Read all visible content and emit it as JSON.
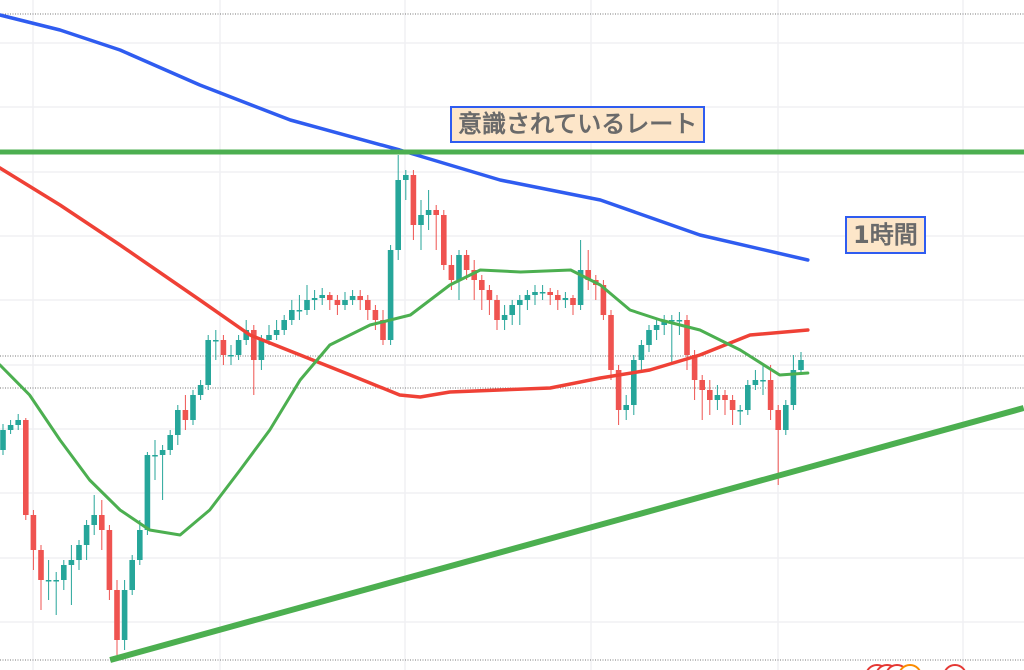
{
  "chart_data": {
    "type": "candlestick",
    "title": "",
    "xlabel": "",
    "ylabel": "",
    "grid": true,
    "ylim": [
      0,
      670
    ],
    "colors": {
      "up": "#26a69a",
      "down": "#ef5350",
      "ma_blue": "#2f5cf0",
      "ma_red": "#ef4136",
      "ma_green": "#4caf50",
      "level_line": "#4caf50",
      "trend_line": "#4caf50"
    },
    "candles_ohlc": [
      [
        220,
        246,
        215,
        240
      ],
      [
        240,
        250,
        236,
        245
      ],
      [
        245,
        256,
        240,
        250
      ],
      [
        250,
        252,
        150,
        155
      ],
      [
        155,
        160,
        100,
        120
      ],
      [
        120,
        125,
        60,
        90
      ],
      [
        90,
        110,
        70,
        90
      ],
      [
        90,
        98,
        55,
        90
      ],
      [
        90,
        110,
        80,
        105
      ],
      [
        105,
        125,
        65,
        110
      ],
      [
        110,
        130,
        100,
        125
      ],
      [
        125,
        150,
        110,
        145
      ],
      [
        145,
        175,
        135,
        155
      ],
      [
        155,
        170,
        120,
        140
      ],
      [
        140,
        145,
        70,
        80
      ],
      [
        80,
        90,
        15,
        30
      ],
      [
        30,
        90,
        20,
        80
      ],
      [
        80,
        115,
        75,
        110
      ],
      [
        110,
        150,
        105,
        140
      ],
      [
        140,
        218,
        135,
        215
      ],
      [
        215,
        230,
        190,
        215
      ],
      [
        215,
        225,
        170,
        220
      ],
      [
        220,
        240,
        215,
        235
      ],
      [
        235,
        265,
        225,
        260
      ],
      [
        260,
        275,
        240,
        250
      ],
      [
        250,
        280,
        245,
        275
      ],
      [
        275,
        290,
        270,
        285
      ],
      [
        285,
        335,
        280,
        330
      ],
      [
        330,
        340,
        310,
        330
      ],
      [
        330,
        335,
        305,
        315
      ],
      [
        315,
        325,
        305,
        315
      ],
      [
        315,
        335,
        310,
        330
      ],
      [
        330,
        350,
        325,
        340
      ],
      [
        340,
        345,
        275,
        310
      ],
      [
        310,
        335,
        300,
        330
      ],
      [
        330,
        345,
        325,
        335
      ],
      [
        335,
        350,
        330,
        340
      ],
      [
        340,
        355,
        335,
        350
      ],
      [
        350,
        370,
        345,
        360
      ],
      [
        360,
        375,
        350,
        360
      ],
      [
        360,
        385,
        355,
        370
      ],
      [
        370,
        380,
        360,
        372
      ],
      [
        372,
        382,
        365,
        375
      ],
      [
        375,
        378,
        360,
        370
      ],
      [
        370,
        375,
        355,
        365
      ],
      [
        365,
        378,
        360,
        370
      ],
      [
        370,
        380,
        365,
        374
      ],
      [
        374,
        380,
        360,
        370
      ],
      [
        370,
        375,
        350,
        360
      ],
      [
        360,
        365,
        340,
        350
      ],
      [
        350,
        360,
        325,
        330
      ],
      [
        330,
        425,
        325,
        420
      ],
      [
        420,
        515,
        410,
        490
      ],
      [
        490,
        500,
        470,
        495
      ],
      [
        495,
        500,
        430,
        445
      ],
      [
        445,
        470,
        420,
        455
      ],
      [
        455,
        480,
        440,
        460
      ],
      [
        460,
        465,
        420,
        455
      ],
      [
        455,
        460,
        400,
        405
      ],
      [
        405,
        415,
        380,
        390
      ],
      [
        390,
        420,
        370,
        415
      ],
      [
        415,
        420,
        390,
        400
      ],
      [
        400,
        410,
        370,
        390
      ],
      [
        390,
        395,
        360,
        380
      ],
      [
        380,
        385,
        355,
        370
      ],
      [
        370,
        375,
        340,
        350
      ],
      [
        350,
        365,
        340,
        355
      ],
      [
        355,
        370,
        345,
        365
      ],
      [
        365,
        375,
        345,
        370
      ],
      [
        370,
        380,
        360,
        375
      ],
      [
        375,
        385,
        365,
        378
      ],
      [
        378,
        385,
        370,
        378
      ],
      [
        378,
        382,
        365,
        375
      ],
      [
        375,
        380,
        360,
        370
      ],
      [
        370,
        378,
        362,
        372
      ],
      [
        372,
        375,
        355,
        365
      ],
      [
        365,
        430,
        360,
        400
      ],
      [
        400,
        420,
        380,
        390
      ],
      [
        390,
        395,
        370,
        385
      ],
      [
        385,
        390,
        350,
        355
      ],
      [
        355,
        360,
        290,
        300
      ],
      [
        300,
        305,
        245,
        260
      ],
      [
        260,
        275,
        250,
        265
      ],
      [
        265,
        315,
        255,
        310
      ],
      [
        310,
        330,
        300,
        325
      ],
      [
        325,
        345,
        318,
        340
      ],
      [
        340,
        350,
        330,
        345
      ],
      [
        345,
        355,
        335,
        350
      ],
      [
        350,
        355,
        305,
        350
      ],
      [
        350,
        358,
        335,
        350
      ],
      [
        350,
        355,
        300,
        315
      ],
      [
        315,
        320,
        270,
        290
      ],
      [
        290,
        295,
        250,
        280
      ],
      [
        280,
        290,
        255,
        270
      ],
      [
        270,
        285,
        260,
        275
      ],
      [
        275,
        280,
        255,
        270
      ],
      [
        270,
        275,
        245,
        260
      ],
      [
        260,
        265,
        245,
        260
      ],
      [
        260,
        290,
        255,
        285
      ],
      [
        285,
        300,
        280,
        290
      ],
      [
        290,
        305,
        275,
        290
      ],
      [
        290,
        305,
        250,
        260
      ],
      [
        260,
        265,
        185,
        240
      ],
      [
        240,
        270,
        235,
        265
      ],
      [
        265,
        315,
        260,
        300
      ],
      [
        300,
        318,
        295,
        310
      ]
    ],
    "moving_averages": [
      {
        "color_key": "ma_blue",
        "points": [
          [
            0.6,
            655
          ],
          [
            8.5,
            640
          ],
          [
            16.4,
            620
          ],
          [
            26.9,
            585
          ],
          [
            38.8,
            550
          ],
          [
            53.2,
            520
          ],
          [
            66.4,
            490
          ],
          [
            79.6,
            470
          ],
          [
            92.7,
            435
          ],
          [
            106.9,
            410
          ]
        ]
      },
      {
        "color_key": "ma_red",
        "points": [
          [
            0.6,
            502
          ],
          [
            8.5,
            465
          ],
          [
            16.4,
            425
          ],
          [
            26.9,
            370
          ],
          [
            33.5,
            335
          ],
          [
            40.1,
            315
          ],
          [
            46.7,
            295
          ],
          [
            53.2,
            275
          ],
          [
            55.9,
            273
          ],
          [
            59.8,
            278
          ],
          [
            73,
            282
          ],
          [
            79.6,
            292
          ],
          [
            86.1,
            300
          ],
          [
            92.7,
            315
          ],
          [
            99.3,
            335
          ],
          [
            106.9,
            340
          ]
        ]
      },
      {
        "color_key": "ma_green",
        "points": [
          [
            0.6,
            305
          ],
          [
            4.5,
            275
          ],
          [
            8.5,
            230
          ],
          [
            12.4,
            190
          ],
          [
            16.4,
            160
          ],
          [
            20.3,
            140
          ],
          [
            24.3,
            135
          ],
          [
            28.2,
            160
          ],
          [
            32.2,
            200
          ],
          [
            36.1,
            240
          ],
          [
            40.1,
            290
          ],
          [
            44,
            325
          ],
          [
            49.3,
            345
          ],
          [
            54.6,
            355
          ],
          [
            59.8,
            385
          ],
          [
            63.8,
            400
          ],
          [
            69.1,
            398
          ],
          [
            75.7,
            400
          ],
          [
            79.6,
            385
          ],
          [
            83.5,
            360
          ],
          [
            87.5,
            350
          ],
          [
            92.7,
            340
          ],
          [
            98,
            320
          ],
          [
            103.2,
            295
          ],
          [
            106.9,
            297
          ]
        ]
      }
    ],
    "level_line": 518,
    "trend_line": [
      [
        15.1,
        10
      ],
      [
        135.3,
        262
      ]
    ],
    "dotted_levels": [
      656,
      314,
      282,
      10
    ],
    "annotations": [
      "意識されているレート",
      "1時間"
    ]
  }
}
